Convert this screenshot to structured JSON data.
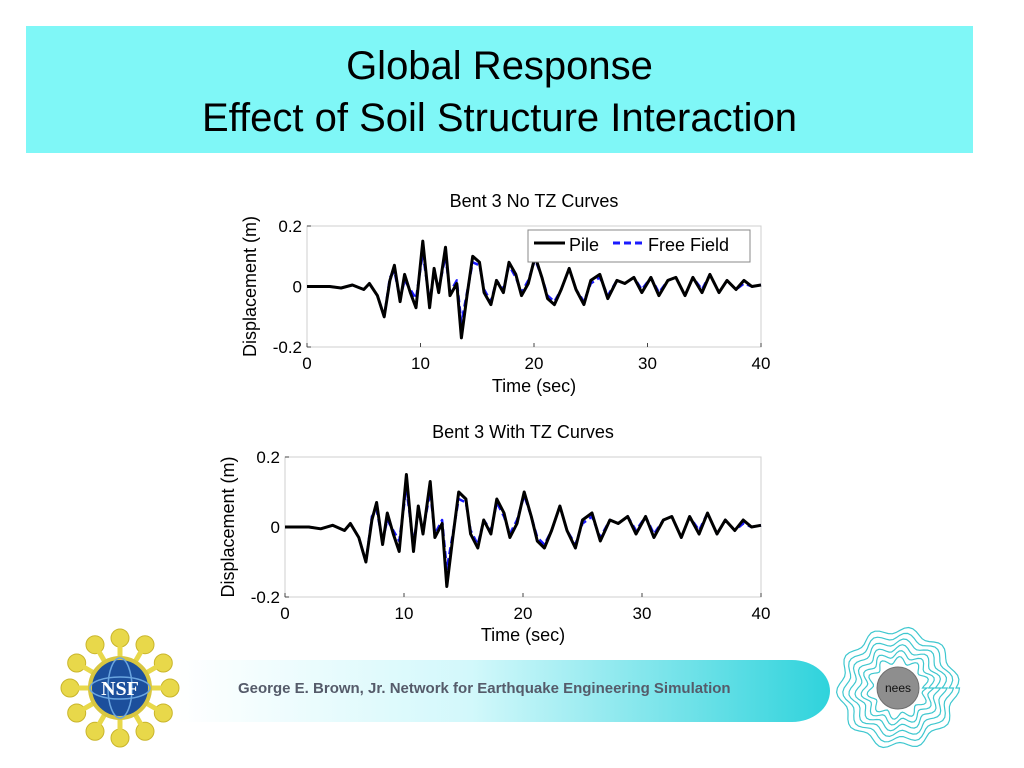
{
  "slide": {
    "title_line1": "Global Response",
    "title_line2": "Effect of Soil Structure Interaction",
    "footer": "George E. Brown, Jr. Network for Earthquake Engineering Simulation",
    "logo_left": "NSF",
    "logo_right": "nees",
    "banner_color": "#7ff7f7"
  },
  "chart_data": [
    {
      "type": "line",
      "title": "Bent 3 No TZ Curves",
      "xlabel": "Time (sec)",
      "ylabel": "Displacement (m)",
      "xlim": [
        0,
        40
      ],
      "ylim": [
        -0.2,
        0.2
      ],
      "xticks": [
        "0",
        "10",
        "20",
        "30",
        "40"
      ],
      "yticks": [
        "0.2",
        "0",
        "-0.2"
      ],
      "legend": "top-right",
      "grid": false,
      "series": [
        {
          "name": "Pile",
          "color": "#000000",
          "style": "solid",
          "x": [
            0,
            2,
            3,
            4,
            5,
            5.5,
            6.2,
            6.8,
            7.3,
            7.7,
            8.2,
            8.6,
            9.1,
            9.6,
            10.2,
            10.8,
            11.2,
            11.6,
            12.2,
            12.6,
            13.2,
            13.6,
            14.1,
            14.6,
            15.2,
            15.6,
            16.2,
            16.7,
            17.3,
            17.8,
            18.4,
            18.9,
            19.5,
            20.1,
            20.7,
            21.2,
            21.8,
            22.4,
            23.1,
            23.7,
            24.4,
            25.0,
            25.8,
            26.5,
            27.3,
            28.0,
            28.8,
            29.5,
            30.3,
            31.0,
            31.8,
            32.5,
            33.3,
            34.0,
            34.8,
            35.5,
            36.3,
            37.0,
            37.8,
            38.5,
            39.2,
            40
          ],
          "y": [
            0,
            0,
            -0.005,
            0.005,
            -0.01,
            0.01,
            -0.03,
            -0.1,
            0.02,
            0.07,
            -0.05,
            0.04,
            -0.02,
            -0.07,
            0.15,
            -0.07,
            0.06,
            -0.02,
            0.13,
            -0.03,
            0.01,
            -0.17,
            -0.03,
            0.1,
            0.08,
            -0.02,
            -0.06,
            0.02,
            -0.02,
            0.08,
            0.04,
            -0.03,
            0.01,
            0.1,
            0.03,
            -0.04,
            -0.06,
            -0.01,
            0.06,
            -0.01,
            -0.06,
            0.02,
            0.04,
            -0.04,
            0.02,
            0.01,
            0.03,
            -0.02,
            0.03,
            -0.03,
            0.02,
            0.03,
            -0.03,
            0.03,
            -0.02,
            0.04,
            -0.02,
            0.02,
            -0.01,
            0.02,
            0,
            0.005
          ]
        },
        {
          "name": "Free Field",
          "color": "#1a1aff",
          "style": "dashed",
          "x": [
            0,
            2,
            3,
            4,
            5,
            5.5,
            6.2,
            6.8,
            7.3,
            7.7,
            8.2,
            8.6,
            9.1,
            9.6,
            10.2,
            10.8,
            11.2,
            11.6,
            12.2,
            12.6,
            13.2,
            13.6,
            14.1,
            14.6,
            15.2,
            15.6,
            16.2,
            16.7,
            17.3,
            17.8,
            18.4,
            18.9,
            19.5,
            20.1,
            20.7,
            21.2,
            21.8,
            22.4,
            23.1,
            23.7,
            24.4,
            25.0,
            25.8,
            26.5,
            27.3,
            28.0,
            28.8,
            29.5,
            30.3,
            31.0,
            31.8,
            32.5,
            33.3,
            34.0,
            34.8,
            35.5,
            36.3,
            37.0,
            37.8,
            38.5,
            39.2,
            40
          ],
          "y": [
            0,
            0,
            -0.005,
            0.005,
            -0.01,
            0.01,
            -0.03,
            -0.1,
            0.03,
            0.05,
            -0.04,
            0.02,
            -0.01,
            -0.04,
            0.11,
            -0.05,
            0.05,
            -0.01,
            0.1,
            -0.02,
            0.02,
            -0.12,
            -0.02,
            0.08,
            0.07,
            -0.01,
            -0.05,
            0.02,
            -0.01,
            0.07,
            0.03,
            -0.02,
            0.02,
            0.09,
            0.03,
            -0.03,
            -0.05,
            -0.01,
            0.06,
            -0.01,
            -0.05,
            0.01,
            0.03,
            -0.03,
            0.02,
            0.01,
            0.03,
            -0.01,
            0.03,
            -0.02,
            0.02,
            0.03,
            -0.03,
            0.03,
            -0.01,
            0.04,
            -0.02,
            0.02,
            -0.01,
            0.01,
            0,
            0.005
          ]
        }
      ]
    },
    {
      "type": "line",
      "title": "Bent 3 With TZ Curves",
      "xlabel": "Time (sec)",
      "ylabel": "Displacement (m)",
      "xlim": [
        0,
        40
      ],
      "ylim": [
        -0.2,
        0.2
      ],
      "xticks": [
        "0",
        "10",
        "20",
        "30",
        "40"
      ],
      "yticks": [
        "0.2",
        "0",
        "-0.2"
      ],
      "grid": false,
      "series": [
        {
          "color": "#000000",
          "style": "solid",
          "x": [
            0,
            2,
            3,
            4,
            5,
            5.5,
            6.2,
            6.8,
            7.3,
            7.7,
            8.2,
            8.6,
            9.1,
            9.6,
            10.2,
            10.8,
            11.2,
            11.6,
            12.2,
            12.6,
            13.2,
            13.6,
            14.1,
            14.6,
            15.2,
            15.6,
            16.2,
            16.7,
            17.3,
            17.8,
            18.4,
            18.9,
            19.5,
            20.1,
            20.7,
            21.2,
            21.8,
            22.4,
            23.1,
            23.7,
            24.4,
            25.0,
            25.8,
            26.5,
            27.3,
            28.0,
            28.8,
            29.5,
            30.3,
            31.0,
            31.8,
            32.5,
            33.3,
            34.0,
            34.8,
            35.5,
            36.3,
            37.0,
            37.8,
            38.5,
            39.2,
            40
          ],
          "y": [
            0,
            0,
            -0.005,
            0.005,
            -0.01,
            0.01,
            -0.03,
            -0.1,
            0.02,
            0.07,
            -0.05,
            0.04,
            -0.02,
            -0.07,
            0.15,
            -0.07,
            0.06,
            -0.02,
            0.13,
            -0.03,
            0.01,
            -0.17,
            -0.03,
            0.1,
            0.08,
            -0.02,
            -0.06,
            0.02,
            -0.02,
            0.08,
            0.04,
            -0.03,
            0.01,
            0.1,
            0.03,
            -0.04,
            -0.06,
            -0.01,
            0.06,
            -0.01,
            -0.06,
            0.02,
            0.04,
            -0.04,
            0.02,
            0.01,
            0.03,
            -0.02,
            0.03,
            -0.03,
            0.02,
            0.03,
            -0.03,
            0.03,
            -0.02,
            0.04,
            -0.02,
            0.02,
            -0.01,
            0.02,
            0,
            0.005
          ]
        },
        {
          "color": "#1a1aff",
          "style": "dashed",
          "x": [
            0,
            2,
            3,
            4,
            5,
            5.5,
            6.2,
            6.8,
            7.3,
            7.7,
            8.2,
            8.6,
            9.1,
            9.6,
            10.2,
            10.8,
            11.2,
            11.6,
            12.2,
            12.6,
            13.2,
            13.6,
            14.1,
            14.6,
            15.2,
            15.6,
            16.2,
            16.7,
            17.3,
            17.8,
            18.4,
            18.9,
            19.5,
            20.1,
            20.7,
            21.2,
            21.8,
            22.4,
            23.1,
            23.7,
            24.4,
            25.0,
            25.8,
            26.5,
            27.3,
            28.0,
            28.8,
            29.5,
            30.3,
            31.0,
            31.8,
            32.5,
            33.3,
            34.0,
            34.8,
            35.5,
            36.3,
            37.0,
            37.8,
            38.5,
            39.2,
            40
          ],
          "y": [
            0,
            0,
            -0.005,
            0.005,
            -0.01,
            0.01,
            -0.03,
            -0.1,
            0.03,
            0.05,
            -0.04,
            0.02,
            -0.01,
            -0.04,
            0.11,
            -0.05,
            0.05,
            -0.01,
            0.1,
            -0.02,
            0.02,
            -0.12,
            -0.02,
            0.08,
            0.07,
            -0.01,
            -0.05,
            0.02,
            -0.01,
            0.07,
            0.03,
            -0.02,
            0.02,
            0.09,
            0.03,
            -0.03,
            -0.05,
            -0.01,
            0.06,
            -0.01,
            -0.05,
            0.01,
            0.03,
            -0.03,
            0.02,
            0.01,
            0.03,
            -0.01,
            0.03,
            -0.02,
            0.02,
            0.03,
            -0.03,
            0.03,
            -0.01,
            0.04,
            -0.02,
            0.02,
            -0.01,
            0.01,
            0,
            0.005
          ]
        }
      ]
    }
  ]
}
